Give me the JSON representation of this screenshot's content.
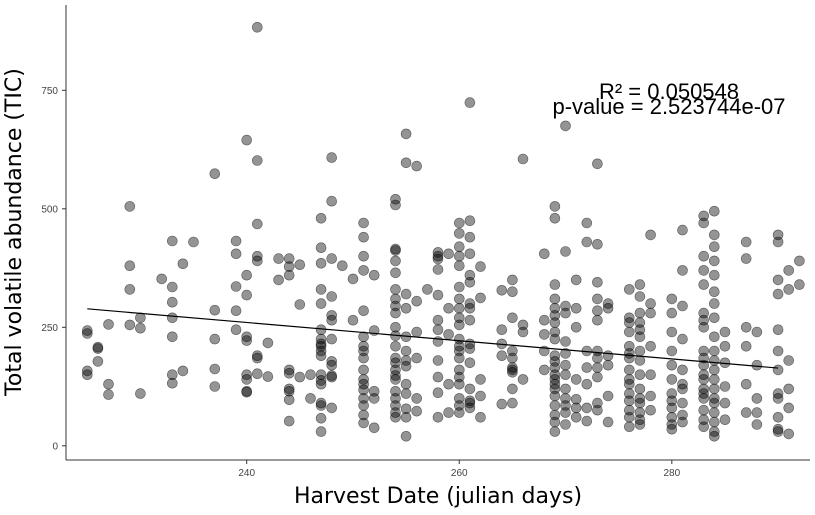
{
  "chart_data": {
    "type": "scatter",
    "xlabel": "Harvest Date (julian days)",
    "ylabel": "Total volatile abundance (TIC)",
    "xlim": [
      223,
      293
    ],
    "ylim": [
      -30,
      930
    ],
    "xticks": [
      240,
      260,
      280
    ],
    "yticks": [
      0,
      250,
      500,
      750
    ],
    "annotations": [
      "R² = 0.050548",
      "p-value = 2.523744e-07"
    ],
    "fit_line": {
      "x": [
        225,
        290
      ],
      "y": [
        289,
        164
      ]
    },
    "point_color": "#000000",
    "points": [
      [
        225,
        237
      ],
      [
        225,
        158
      ],
      [
        225,
        150
      ],
      [
        226,
        205
      ],
      [
        226,
        208
      ],
      [
        226,
        178
      ],
      [
        227,
        108
      ],
      [
        227,
        256
      ],
      [
        227,
        130
      ],
      [
        225,
        243
      ],
      [
        229,
        505
      ],
      [
        229,
        380
      ],
      [
        229,
        330
      ],
      [
        230,
        270
      ],
      [
        229,
        255
      ],
      [
        230,
        248
      ],
      [
        230,
        110
      ],
      [
        232,
        352
      ],
      [
        233,
        432
      ],
      [
        233,
        335
      ],
      [
        233,
        303
      ],
      [
        233,
        270
      ],
      [
        233,
        230
      ],
      [
        233,
        150
      ],
      [
        233,
        132
      ],
      [
        234,
        384
      ],
      [
        234,
        158
      ],
      [
        235,
        430
      ],
      [
        237,
        286
      ],
      [
        237,
        225
      ],
      [
        237,
        162
      ],
      [
        237,
        125
      ],
      [
        237,
        574
      ],
      [
        239,
        432
      ],
      [
        239,
        405
      ],
      [
        239,
        336
      ],
      [
        239,
        285
      ],
      [
        239,
        245
      ],
      [
        240,
        115
      ],
      [
        240,
        140
      ],
      [
        240,
        645
      ],
      [
        240,
        360
      ],
      [
        240,
        318
      ],
      [
        240,
        230
      ],
      [
        240,
        222
      ],
      [
        240,
        150
      ],
      [
        240,
        113
      ],
      [
        241,
        883
      ],
      [
        241,
        602
      ],
      [
        241,
        468
      ],
      [
        241,
        400
      ],
      [
        241,
        390
      ],
      [
        241,
        190
      ],
      [
        241,
        185
      ],
      [
        241,
        152
      ],
      [
        242,
        217
      ],
      [
        242,
        146
      ],
      [
        243,
        395
      ],
      [
        244,
        395
      ],
      [
        244,
        378
      ],
      [
        244,
        360
      ],
      [
        244,
        160
      ],
      [
        244,
        153
      ],
      [
        244,
        120
      ],
      [
        244,
        115
      ],
      [
        244,
        97
      ],
      [
        244,
        52
      ],
      [
        245,
        382
      ],
      [
        245,
        298
      ],
      [
        245,
        145
      ],
      [
        243,
        350
      ],
      [
        246,
        150
      ],
      [
        246,
        100
      ],
      [
        247,
        225
      ],
      [
        247,
        480
      ],
      [
        247,
        418
      ],
      [
        247,
        385
      ],
      [
        247,
        330
      ],
      [
        247,
        300
      ],
      [
        247,
        245
      ],
      [
        247,
        215
      ],
      [
        247,
        210
      ],
      [
        247,
        200
      ],
      [
        247,
        190
      ],
      [
        247,
        150
      ],
      [
        247,
        138
      ],
      [
        247,
        130
      ],
      [
        247,
        90
      ],
      [
        247,
        85
      ],
      [
        247,
        58
      ],
      [
        247,
        30
      ],
      [
        248,
        608
      ],
      [
        248,
        516
      ],
      [
        248,
        395
      ],
      [
        248,
        315
      ],
      [
        248,
        275
      ],
      [
        248,
        265
      ],
      [
        248,
        225
      ],
      [
        248,
        178
      ],
      [
        248,
        170
      ],
      [
        248,
        148
      ],
      [
        248,
        145
      ],
      [
        248,
        80
      ],
      [
        249,
        380
      ],
      [
        250,
        352
      ],
      [
        250,
        265
      ],
      [
        251,
        470
      ],
      [
        251,
        440
      ],
      [
        251,
        400
      ],
      [
        251,
        370
      ],
      [
        251,
        285
      ],
      [
        251,
        230
      ],
      [
        251,
        210
      ],
      [
        251,
        200
      ],
      [
        251,
        185
      ],
      [
        251,
        160
      ],
      [
        251,
        140
      ],
      [
        251,
        130
      ],
      [
        251,
        118
      ],
      [
        251,
        100
      ],
      [
        251,
        85
      ],
      [
        251,
        65
      ],
      [
        251,
        48
      ],
      [
        252,
        360
      ],
      [
        252,
        243
      ],
      [
        252,
        115
      ],
      [
        252,
        100
      ],
      [
        252,
        38
      ],
      [
        254,
        520
      ],
      [
        254,
        508
      ],
      [
        254,
        415
      ],
      [
        254,
        412
      ],
      [
        254,
        390
      ],
      [
        254,
        365
      ],
      [
        254,
        330
      ],
      [
        254,
        310
      ],
      [
        254,
        295
      ],
      [
        254,
        280
      ],
      [
        254,
        250
      ],
      [
        254,
        232
      ],
      [
        254,
        210
      ],
      [
        254,
        185
      ],
      [
        254,
        175
      ],
      [
        254,
        160
      ],
      [
        254,
        148
      ],
      [
        254,
        140
      ],
      [
        254,
        115
      ],
      [
        254,
        100
      ],
      [
        254,
        85
      ],
      [
        254,
        70
      ],
      [
        254,
        60
      ],
      [
        255,
        658
      ],
      [
        255,
        597
      ],
      [
        255,
        320
      ],
      [
        255,
        290
      ],
      [
        255,
        230
      ],
      [
        255,
        200
      ],
      [
        255,
        180
      ],
      [
        255,
        168
      ],
      [
        255,
        130
      ],
      [
        255,
        110
      ],
      [
        255,
        78
      ],
      [
        255,
        60
      ],
      [
        255,
        20
      ],
      [
        256,
        590
      ],
      [
        256,
        305
      ],
      [
        256,
        240
      ],
      [
        256,
        185
      ],
      [
        256,
        100
      ],
      [
        256,
        73
      ],
      [
        257,
        330
      ],
      [
        258,
        408
      ],
      [
        258,
        400
      ],
      [
        258,
        394
      ],
      [
        258,
        372
      ],
      [
        258,
        318
      ],
      [
        258,
        265
      ],
      [
        258,
        245
      ],
      [
        258,
        220
      ],
      [
        258,
        180
      ],
      [
        258,
        145
      ],
      [
        258,
        112
      ],
      [
        258,
        60
      ],
      [
        259,
        405
      ],
      [
        259,
        290
      ],
      [
        259,
        235
      ],
      [
        259,
        130
      ],
      [
        259,
        70
      ],
      [
        260,
        470
      ],
      [
        260,
        448
      ],
      [
        260,
        420
      ],
      [
        260,
        400
      ],
      [
        260,
        380
      ],
      [
        260,
        335
      ],
      [
        260,
        310
      ],
      [
        260,
        290
      ],
      [
        260,
        270
      ],
      [
        260,
        255
      ],
      [
        260,
        225
      ],
      [
        260,
        210
      ],
      [
        260,
        200
      ],
      [
        260,
        185
      ],
      [
        260,
        160
      ],
      [
        260,
        145
      ],
      [
        260,
        130
      ],
      [
        260,
        100
      ],
      [
        260,
        85
      ],
      [
        260,
        70
      ],
      [
        261,
        724
      ],
      [
        261,
        475
      ],
      [
        261,
        440
      ],
      [
        261,
        405
      ],
      [
        261,
        360
      ],
      [
        261,
        345
      ],
      [
        261,
        300
      ],
      [
        261,
        290
      ],
      [
        261,
        265
      ],
      [
        261,
        215
      ],
      [
        261,
        205
      ],
      [
        261,
        175
      ],
      [
        261,
        120
      ],
      [
        261,
        95
      ],
      [
        261,
        90
      ],
      [
        261,
        80
      ],
      [
        262,
        378
      ],
      [
        262,
        312
      ],
      [
        262,
        140
      ],
      [
        262,
        105
      ],
      [
        262,
        60
      ],
      [
        264,
        328
      ],
      [
        264,
        245
      ],
      [
        264,
        215
      ],
      [
        264,
        190
      ],
      [
        264,
        88
      ],
      [
        265,
        350
      ],
      [
        265,
        325
      ],
      [
        265,
        270
      ],
      [
        265,
        200
      ],
      [
        265,
        185
      ],
      [
        265,
        165
      ],
      [
        265,
        160
      ],
      [
        265,
        155
      ],
      [
        265,
        120
      ],
      [
        265,
        90
      ],
      [
        266,
        605
      ],
      [
        266,
        255
      ],
      [
        266,
        240
      ],
      [
        266,
        140
      ],
      [
        268,
        405
      ],
      [
        268,
        265
      ],
      [
        268,
        235
      ],
      [
        268,
        200
      ],
      [
        268,
        160
      ],
      [
        269,
        505
      ],
      [
        269,
        480
      ],
      [
        269,
        340
      ],
      [
        269,
        310
      ],
      [
        269,
        290
      ],
      [
        269,
        275
      ],
      [
        269,
        260
      ],
      [
        269,
        240
      ],
      [
        269,
        225
      ],
      [
        269,
        190
      ],
      [
        269,
        178
      ],
      [
        269,
        165
      ],
      [
        269,
        150
      ],
      [
        269,
        140
      ],
      [
        269,
        130
      ],
      [
        269,
        120
      ],
      [
        269,
        105
      ],
      [
        269,
        85
      ],
      [
        269,
        65
      ],
      [
        269,
        50
      ],
      [
        269,
        30
      ],
      [
        270,
        675
      ],
      [
        270,
        410
      ],
      [
        270,
        295
      ],
      [
        270,
        280
      ],
      [
        270,
        220
      ],
      [
        270,
        195
      ],
      [
        270,
        170
      ],
      [
        270,
        150
      ],
      [
        270,
        120
      ],
      [
        270,
        100
      ],
      [
        270,
        85
      ],
      [
        270,
        70
      ],
      [
        270,
        45
      ],
      [
        271,
        350
      ],
      [
        271,
        290
      ],
      [
        271,
        250
      ],
      [
        271,
        140
      ],
      [
        271,
        98
      ],
      [
        271,
        80
      ],
      [
        271,
        60
      ],
      [
        272,
        470
      ],
      [
        272,
        430
      ],
      [
        272,
        200
      ],
      [
        272,
        165
      ],
      [
        272,
        130
      ],
      [
        272,
        80
      ],
      [
        272,
        52
      ],
      [
        273,
        595
      ],
      [
        273,
        425
      ],
      [
        273,
        345
      ],
      [
        273,
        310
      ],
      [
        273,
        285
      ],
      [
        273,
        265
      ],
      [
        273,
        200
      ],
      [
        273,
        185
      ],
      [
        273,
        165
      ],
      [
        273,
        145
      ],
      [
        273,
        90
      ],
      [
        273,
        75
      ],
      [
        274,
        300
      ],
      [
        274,
        290
      ],
      [
        274,
        190
      ],
      [
        274,
        170
      ],
      [
        274,
        105
      ],
      [
        274,
        50
      ],
      [
        276,
        330
      ],
      [
        276,
        270
      ],
      [
        276,
        260
      ],
      [
        276,
        240
      ],
      [
        276,
        210
      ],
      [
        276,
        195
      ],
      [
        276,
        185
      ],
      [
        276,
        160
      ],
      [
        276,
        140
      ],
      [
        276,
        130
      ],
      [
        276,
        110
      ],
      [
        276,
        95
      ],
      [
        276,
        75
      ],
      [
        276,
        60
      ],
      [
        276,
        40
      ],
      [
        277,
        340
      ],
      [
        277,
        315
      ],
      [
        277,
        280
      ],
      [
        277,
        260
      ],
      [
        277,
        245
      ],
      [
        277,
        230
      ],
      [
        277,
        200
      ],
      [
        277,
        180
      ],
      [
        277,
        150
      ],
      [
        277,
        120
      ],
      [
        277,
        100
      ],
      [
        277,
        90
      ],
      [
        277,
        70
      ],
      [
        277,
        55
      ],
      [
        277,
        45
      ],
      [
        278,
        445
      ],
      [
        278,
        300
      ],
      [
        278,
        280
      ],
      [
        278,
        210
      ],
      [
        278,
        150
      ],
      [
        278,
        105
      ],
      [
        278,
        75
      ],
      [
        280,
        310
      ],
      [
        280,
        280
      ],
      [
        280,
        240
      ],
      [
        280,
        200
      ],
      [
        280,
        170
      ],
      [
        280,
        140
      ],
      [
        280,
        110
      ],
      [
        280,
        95
      ],
      [
        280,
        80
      ],
      [
        280,
        60
      ],
      [
        280,
        45
      ],
      [
        280,
        35
      ],
      [
        281,
        455
      ],
      [
        281,
        370
      ],
      [
        281,
        295
      ],
      [
        281,
        225
      ],
      [
        281,
        160
      ],
      [
        281,
        130
      ],
      [
        281,
        120
      ],
      [
        281,
        90
      ],
      [
        281,
        65
      ],
      [
        281,
        50
      ],
      [
        283,
        485
      ],
      [
        283,
        470
      ],
      [
        283,
        400
      ],
      [
        283,
        370
      ],
      [
        283,
        340
      ],
      [
        283,
        280
      ],
      [
        283,
        265
      ],
      [
        283,
        250
      ],
      [
        283,
        200
      ],
      [
        283,
        185
      ],
      [
        283,
        170
      ],
      [
        283,
        150
      ],
      [
        283,
        140
      ],
      [
        283,
        120
      ],
      [
        283,
        110
      ],
      [
        283,
        100
      ],
      [
        283,
        75
      ],
      [
        283,
        55
      ],
      [
        283,
        40
      ],
      [
        284,
        495
      ],
      [
        284,
        445
      ],
      [
        284,
        420
      ],
      [
        284,
        390
      ],
      [
        284,
        360
      ],
      [
        284,
        325
      ],
      [
        284,
        300
      ],
      [
        284,
        270
      ],
      [
        284,
        230
      ],
      [
        284,
        200
      ],
      [
        284,
        180
      ],
      [
        284,
        160
      ],
      [
        284,
        140
      ],
      [
        284,
        120
      ],
      [
        284,
        100
      ],
      [
        284,
        90
      ],
      [
        284,
        70
      ],
      [
        284,
        50
      ],
      [
        284,
        30
      ],
      [
        284,
        20
      ],
      [
        285,
        240
      ],
      [
        285,
        210
      ],
      [
        285,
        175
      ],
      [
        285,
        125
      ],
      [
        285,
        90
      ],
      [
        285,
        55
      ],
      [
        287,
        430
      ],
      [
        287,
        395
      ],
      [
        287,
        250
      ],
      [
        287,
        210
      ],
      [
        287,
        130
      ],
      [
        287,
        70
      ],
      [
        288,
        240
      ],
      [
        288,
        170
      ],
      [
        288,
        100
      ],
      [
        288,
        70
      ],
      [
        288,
        45
      ],
      [
        290,
        445
      ],
      [
        290,
        430
      ],
      [
        290,
        350
      ],
      [
        290,
        320
      ],
      [
        290,
        245
      ],
      [
        290,
        200
      ],
      [
        290,
        160
      ],
      [
        290,
        110
      ],
      [
        290,
        100
      ],
      [
        290,
        60
      ],
      [
        290,
        35
      ],
      [
        290,
        30
      ],
      [
        291,
        370
      ],
      [
        291,
        330
      ],
      [
        291,
        180
      ],
      [
        291,
        120
      ],
      [
        291,
        80
      ],
      [
        291,
        25
      ],
      [
        292,
        390
      ],
      [
        292,
        340
      ]
    ]
  }
}
